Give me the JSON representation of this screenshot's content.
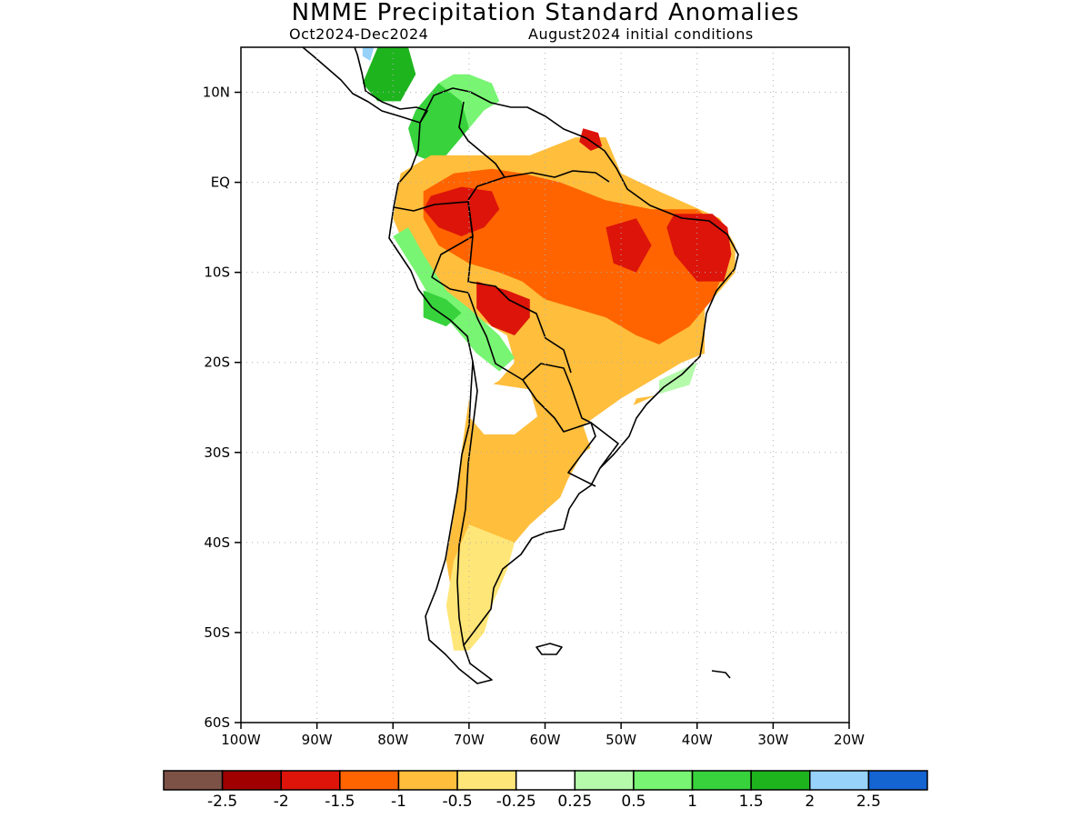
{
  "header": {
    "title": "NMME Precipitation Standard Anomalies",
    "period": "Oct2024-Dec2024",
    "init": "August2024 initial conditions"
  },
  "map": {
    "lon_range": [
      -100,
      -20
    ],
    "lat_range": [
      -60,
      15
    ],
    "lon_ticks": [
      {
        "value": -100,
        "label": "100W"
      },
      {
        "value": -90,
        "label": "90W"
      },
      {
        "value": -80,
        "label": "80W"
      },
      {
        "value": -70,
        "label": "70W"
      },
      {
        "value": -60,
        "label": "60W"
      },
      {
        "value": -50,
        "label": "50W"
      },
      {
        "value": -40,
        "label": "40W"
      },
      {
        "value": -30,
        "label": "30W"
      },
      {
        "value": -20,
        "label": "20W"
      }
    ],
    "lat_ticks": [
      {
        "value": 10,
        "label": "10N"
      },
      {
        "value": 0,
        "label": "EQ"
      },
      {
        "value": -10,
        "label": "10S"
      },
      {
        "value": -20,
        "label": "20S"
      },
      {
        "value": -30,
        "label": "30S"
      },
      {
        "value": -40,
        "label": "40S"
      },
      {
        "value": -50,
        "label": "50S"
      },
      {
        "value": -60,
        "label": "60S"
      }
    ],
    "grid": true
  },
  "colorbar": {
    "bins": [
      {
        "color": "#7d5246"
      },
      {
        "color": "#a00000"
      },
      {
        "color": "#dc140a"
      },
      {
        "color": "#ff6400"
      },
      {
        "color": "#ffbe3c"
      },
      {
        "color": "#ffe678"
      },
      {
        "color": "#ffffff"
      },
      {
        "color": "#b4faaa"
      },
      {
        "color": "#78f573"
      },
      {
        "color": "#37d23c"
      },
      {
        "color": "#1eb41e"
      },
      {
        "color": "#96d2fa"
      },
      {
        "color": "#1464d2"
      }
    ],
    "labels": [
      "-2.5",
      "-2",
      "-1.5",
      "-1",
      "-0.5",
      "-0.25",
      "0.25",
      "0.5",
      "1",
      "1.5",
      "2",
      "2.5"
    ]
  },
  "regions": [
    {
      "name": "central-america-green",
      "color": "#1eb41e",
      "points": [
        [
          -82,
          15
        ],
        [
          -78,
          15
        ],
        [
          -77,
          12
        ],
        [
          -79,
          9
        ],
        [
          -82,
          9
        ],
        [
          -84,
          11
        ]
      ]
    },
    {
      "name": "central-america-blue",
      "color": "#96d2fa",
      "points": [
        [
          -84,
          15
        ],
        [
          -82.5,
          15
        ],
        [
          -83,
          13.5
        ],
        [
          -84,
          14
        ]
      ]
    },
    {
      "name": "colombia-green",
      "color": "#37d23c",
      "points": [
        [
          -77,
          8
        ],
        [
          -74,
          11
        ],
        [
          -72,
          12
        ],
        [
          -71,
          11
        ],
        [
          -70,
          6
        ],
        [
          -72,
          4
        ],
        [
          -74,
          2
        ],
        [
          -77,
          3
        ],
        [
          -78,
          6
        ]
      ]
    },
    {
      "name": "colombia-lightgreen",
      "color": "#78f573",
      "points": [
        [
          -74,
          11
        ],
        [
          -72,
          12
        ],
        [
          -70,
          12
        ],
        [
          -67,
          11
        ],
        [
          -66,
          9
        ],
        [
          -68,
          8
        ],
        [
          -70,
          6
        ],
        [
          -71,
          9
        ]
      ]
    },
    {
      "name": "amazon-lightorange",
      "color": "#ffbe3c",
      "points": [
        [
          -79,
          1
        ],
        [
          -75,
          3
        ],
        [
          -68,
          3
        ],
        [
          -62,
          3
        ],
        [
          -56,
          5
        ],
        [
          -52,
          5
        ],
        [
          -50,
          1
        ],
        [
          -45,
          -1
        ],
        [
          -37,
          -4
        ],
        [
          -35,
          -7
        ],
        [
          -35,
          -10
        ],
        [
          -39,
          -14
        ],
        [
          -39,
          -19
        ],
        [
          -42,
          -22.5
        ],
        [
          -45,
          -23.5
        ],
        [
          -49,
          -25
        ],
        [
          -51,
          -28
        ],
        [
          -55,
          -30
        ],
        [
          -57,
          -33
        ],
        [
          -58,
          -35
        ],
        [
          -62,
          -38
        ],
        [
          -65,
          -41
        ],
        [
          -66,
          -45
        ],
        [
          -68,
          -48
        ],
        [
          -69,
          -51
        ],
        [
          -72,
          -51
        ],
        [
          -72,
          -47
        ],
        [
          -73,
          -42
        ],
        [
          -72,
          -37
        ],
        [
          -71,
          -30
        ],
        [
          -70,
          -24
        ],
        [
          -66,
          -22
        ],
        [
          -64,
          -20
        ],
        [
          -65,
          -17
        ],
        [
          -69,
          -15
        ],
        [
          -74,
          -13
        ],
        [
          -76,
          -10
        ],
        [
          -78,
          -8
        ],
        [
          -80,
          -4
        ]
      ]
    },
    {
      "name": "amazon-orange",
      "color": "#ff6400",
      "points": [
        [
          -76,
          -1
        ],
        [
          -72,
          1
        ],
        [
          -67,
          1.5
        ],
        [
          -63,
          1
        ],
        [
          -58,
          0
        ],
        [
          -52,
          -2
        ],
        [
          -46,
          -3
        ],
        [
          -40,
          -3
        ],
        [
          -37,
          -5
        ],
        [
          -36,
          -9
        ],
        [
          -38,
          -13
        ],
        [
          -41,
          -16
        ],
        [
          -45,
          -18
        ],
        [
          -48,
          -17
        ],
        [
          -52,
          -15
        ],
        [
          -56,
          -14
        ],
        [
          -60,
          -13
        ],
        [
          -63,
          -11
        ],
        [
          -66,
          -10
        ],
        [
          -70,
          -9
        ],
        [
          -74,
          -7
        ],
        [
          -76,
          -4
        ]
      ]
    },
    {
      "name": "amazon-red-west",
      "color": "#dc140a",
      "points": [
        [
          -75,
          -1.5
        ],
        [
          -71,
          -0.5
        ],
        [
          -67,
          -1
        ],
        [
          -66,
          -3
        ],
        [
          -68,
          -5
        ],
        [
          -71,
          -6
        ],
        [
          -74,
          -5
        ],
        [
          -76,
          -3
        ]
      ]
    },
    {
      "name": "bolivia-red",
      "color": "#dc140a",
      "points": [
        [
          -69,
          -11
        ],
        [
          -65,
          -12
        ],
        [
          -62,
          -13
        ],
        [
          -62,
          -15
        ],
        [
          -64,
          -17
        ],
        [
          -67,
          -16
        ],
        [
          -69,
          -14
        ]
      ]
    },
    {
      "name": "northeast-red",
      "color": "#dc140a",
      "points": [
        [
          -43,
          -3.5
        ],
        [
          -38,
          -3.5
        ],
        [
          -36,
          -5
        ],
        [
          -35.5,
          -8
        ],
        [
          -36.5,
          -11
        ],
        [
          -40,
          -11
        ],
        [
          -43,
          -8
        ],
        [
          -44,
          -5
        ]
      ]
    },
    {
      "name": "central-red",
      "color": "#dc140a",
      "points": [
        [
          -52,
          -5
        ],
        [
          -48,
          -4
        ],
        [
          -46,
          -7
        ],
        [
          -48,
          -10
        ],
        [
          -51,
          -9
        ]
      ]
    },
    {
      "name": "guiana-red",
      "color": "#dc140a",
      "points": [
        [
          -55,
          6
        ],
        [
          -53,
          5.5
        ],
        [
          -52.5,
          4
        ],
        [
          -54,
          3.5
        ],
        [
          -55.5,
          4.5
        ]
      ]
    },
    {
      "name": "peru-lightgreen",
      "color": "#78f573",
      "points": [
        [
          -78,
          -5
        ],
        [
          -76,
          -8
        ],
        [
          -73,
          -12
        ],
        [
          -70,
          -14
        ],
        [
          -66,
          -17
        ],
        [
          -64,
          -19.5
        ],
        [
          -66,
          -21
        ],
        [
          -69,
          -19
        ],
        [
          -72,
          -16
        ],
        [
          -75,
          -13
        ],
        [
          -77,
          -10
        ],
        [
          -80,
          -6
        ]
      ]
    },
    {
      "name": "peru-green",
      "color": "#37d23c",
      "points": [
        [
          -76,
          -12
        ],
        [
          -73,
          -13
        ],
        [
          -71,
          -14.5
        ],
        [
          -73,
          -16
        ],
        [
          -76,
          -15
        ]
      ]
    },
    {
      "name": "southeast-white",
      "color": "#ffffff",
      "points": [
        [
          -42,
          -20
        ],
        [
          -39,
          -19
        ],
        [
          -40,
          -22
        ],
        [
          -44,
          -23.5
        ],
        [
          -48,
          -24
        ],
        [
          -50,
          -28
        ],
        [
          -53,
          -32
        ],
        [
          -55,
          -27
        ],
        [
          -50,
          -24
        ],
        [
          -46,
          -22
        ]
      ]
    },
    {
      "name": "southeast-lightgreen",
      "color": "#b4faaa",
      "points": [
        [
          -45,
          -22
        ],
        [
          -40,
          -20
        ],
        [
          -41,
          -22.5
        ],
        [
          -45,
          -23.5
        ]
      ]
    },
    {
      "name": "chaco-white",
      "color": "#ffffff",
      "points": [
        [
          -70,
          -22
        ],
        [
          -66,
          -22.5
        ],
        [
          -62,
          -23
        ],
        [
          -61,
          -26
        ],
        [
          -64,
          -28
        ],
        [
          -68,
          -28
        ],
        [
          -70,
          -26
        ]
      ]
    },
    {
      "name": "patagonia-yellow",
      "color": "#ffe678",
      "points": [
        [
          -70,
          -38
        ],
        [
          -64,
          -40
        ],
        [
          -65,
          -43
        ],
        [
          -67,
          -47
        ],
        [
          -68,
          -50
        ],
        [
          -70,
          -52
        ],
        [
          -72,
          -52
        ],
        [
          -73,
          -47
        ],
        [
          -72,
          -42
        ]
      ]
    }
  ]
}
